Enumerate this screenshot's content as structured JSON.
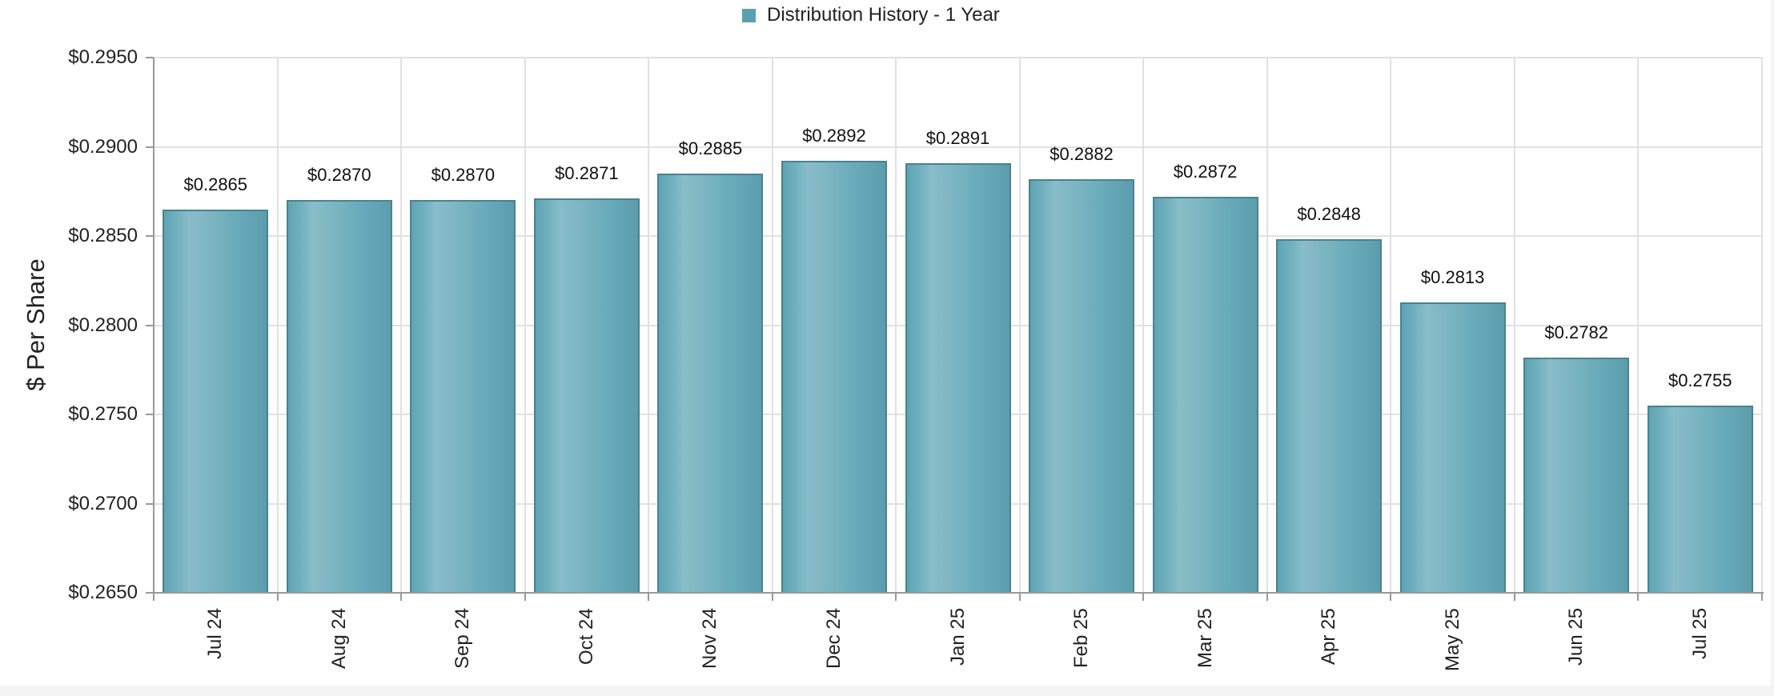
{
  "legend": {
    "label": "Distribution History - 1 Year",
    "color": "#5ba0b2"
  },
  "y_axis": {
    "title": "$ Per Share",
    "ticks": [
      "$0.2950",
      "$0.2900",
      "$0.2850",
      "$0.2800",
      "$0.2750",
      "$0.2700",
      "$0.2650"
    ]
  },
  "x_axis": {
    "categories": [
      "Jul 24",
      "Aug 24",
      "Sep 24",
      "Oct 24",
      "Nov 24",
      "Dec 24",
      "Jan 25",
      "Feb 25",
      "Mar 25",
      "Apr 25",
      "May 25",
      "Jun 25",
      "Jul 25"
    ]
  },
  "bars": {
    "labels": [
      "$0.2865",
      "$0.2870",
      "$0.2870",
      "$0.2871",
      "$0.2885",
      "$0.2892",
      "$0.2891",
      "$0.2882",
      "$0.2872",
      "$0.2848",
      "$0.2813",
      "$0.2782",
      "$0.2755"
    ]
  },
  "colors": {
    "bar_fill": "#6aaebd",
    "bar_border": "#4a8290",
    "grid": "#e1e1e1",
    "axis": "#999999"
  },
  "chart_data": {
    "type": "bar",
    "title": "",
    "legend": [
      "Distribution History - 1 Year"
    ],
    "legend_position": "top",
    "categories": [
      "Jul 24",
      "Aug 24",
      "Sep 24",
      "Oct 24",
      "Nov 24",
      "Dec 24",
      "Jan 25",
      "Feb 25",
      "Mar 25",
      "Apr 25",
      "May 25",
      "Jun 25",
      "Jul 25"
    ],
    "series": [
      {
        "name": "Distribution History - 1 Year",
        "values": [
          0.2865,
          0.287,
          0.287,
          0.2871,
          0.2885,
          0.2892,
          0.2891,
          0.2882,
          0.2872,
          0.2848,
          0.2813,
          0.2782,
          0.2755
        ]
      }
    ],
    "data_labels": [
      "$0.2865",
      "$0.2870",
      "$0.2870",
      "$0.2871",
      "$0.2885",
      "$0.2892",
      "$0.2891",
      "$0.2882",
      "$0.2872",
      "$0.2848",
      "$0.2813",
      "$0.2782",
      "$0.2755"
    ],
    "xlabel": "",
    "ylabel": "$ Per Share",
    "ylim": [
      0.265,
      0.295
    ],
    "yticks": [
      0.265,
      0.27,
      0.275,
      0.28,
      0.285,
      0.29,
      0.295
    ],
    "ytick_format": "$0.0000",
    "xtick_rotation": -90,
    "grid": true
  }
}
